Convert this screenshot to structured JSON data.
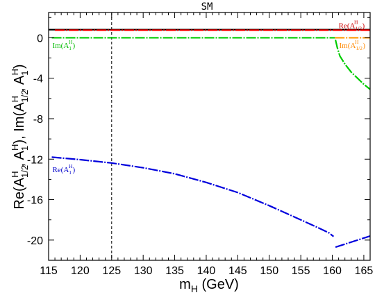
{
  "chart_data": {
    "type": "line",
    "title": "SM",
    "xlabel": {
      "main": "m",
      "sub": "H",
      "rest": " (GeV)"
    },
    "ylabel": "Re(A₁₂ᴴ, A₁ᴴ), Im(A₁₂ᴴ, A₁ᴴ)",
    "xlim": [
      115,
      166
    ],
    "ylim": [
      -22,
      2.5
    ],
    "xticks": [
      115,
      120,
      125,
      130,
      135,
      140,
      145,
      150,
      155,
      160,
      165
    ],
    "yticks": [
      0,
      -4,
      -8,
      -12,
      -16,
      -20
    ],
    "grid": false,
    "vline": {
      "x": 125,
      "style": "dashed"
    },
    "annotations": [
      {
        "id": "re-a12",
        "text": "Re(A",
        "sup": "H",
        "sub": "1/2",
        "x": 161.0,
        "y": 0.95,
        "color": "#cc0000"
      },
      {
        "id": "im-a1",
        "text": "Im(A",
        "sup": "H",
        "sub": "1",
        "x": 115.6,
        "y": -1.0,
        "color": "#00bb00"
      },
      {
        "id": "im-a12",
        "text": "Im(A",
        "sup": "H",
        "sub": "1/2",
        "x": 161.1,
        "y": -1.0,
        "color": "#ff8800"
      },
      {
        "id": "re-a1",
        "text": "Re(A",
        "sup": "H",
        "sub": "1",
        "x": 115.6,
        "y": -13.3,
        "color": "#0000cc"
      }
    ],
    "series": [
      {
        "id": "re-a12-black",
        "color": "#000000",
        "x": [
          115,
          116,
          120,
          125,
          130,
          135,
          140,
          145,
          150,
          155,
          160,
          166
        ],
        "values": [
          0.8,
          0.8,
          0.8,
          0.8,
          0.8,
          0.8,
          0.8,
          0.8,
          0.8,
          0.8,
          0.8,
          0.8
        ]
      },
      {
        "id": "re-a12",
        "color": "#ff0000",
        "x": [
          116,
          120,
          125,
          130,
          135,
          140,
          145,
          150,
          155,
          160,
          166
        ],
        "values": [
          0.75,
          0.75,
          0.75,
          0.75,
          0.75,
          0.75,
          0.75,
          0.75,
          0.75,
          0.75,
          0.75
        ]
      },
      {
        "id": "im-a1",
        "color": "#00cc00",
        "x": [
          115.5,
          120,
          125,
          130,
          135,
          140,
          145,
          150,
          155,
          160.4
        ],
        "values": [
          0,
          0,
          0,
          0,
          0,
          0,
          0,
          0,
          0,
          0
        ]
      },
      {
        "id": "im-a12",
        "color": "#ff9900",
        "x": [
          160.4,
          162,
          164,
          166
        ],
        "values": [
          0,
          0,
          0,
          0
        ]
      },
      {
        "id": "im-a1-above-threshold",
        "color": "#00cc00",
        "x": [
          160.5,
          160.8,
          161.2,
          162,
          163,
          164,
          165,
          166
        ],
        "values": [
          -0.2,
          -1.0,
          -1.8,
          -2.6,
          -3.4,
          -4.0,
          -4.6,
          -5.1
        ]
      },
      {
        "id": "re-a1-below-threshold",
        "color": "#0000dd",
        "x": [
          115.5,
          120,
          125,
          130,
          135,
          140,
          145,
          150,
          155,
          158,
          159.5,
          160.2
        ],
        "values": [
          -11.8,
          -12.05,
          -12.38,
          -12.85,
          -13.45,
          -14.3,
          -15.3,
          -16.6,
          -18.0,
          -18.85,
          -19.3,
          -19.65
        ]
      },
      {
        "id": "re-a1-above-threshold",
        "color": "#0000dd",
        "x": [
          160.5,
          162,
          164,
          166
        ],
        "values": [
          -20.7,
          -20.4,
          -20.0,
          -19.6
        ]
      }
    ]
  }
}
